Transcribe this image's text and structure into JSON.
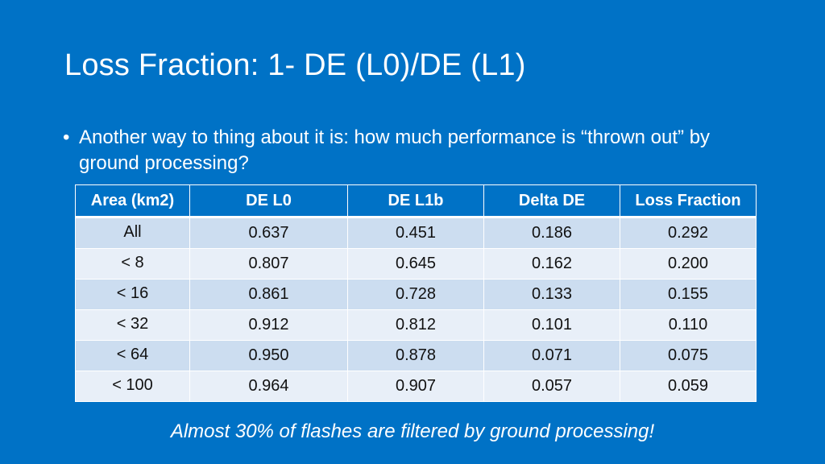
{
  "slide": {
    "title": "Loss Fraction: 1- DE (L0)/DE (L1)",
    "bullets": [
      {
        "marker": "•",
        "text": "Another way to thing about it is: how much performance is “thrown out” by ground processing?"
      }
    ],
    "table": {
      "headers": [
        "Area (km2)",
        "DE L0",
        "DE L1b",
        "Delta DE",
        "Loss Fraction"
      ],
      "rows": [
        [
          "All",
          "0.637",
          "0.451",
          "0.186",
          "0.292"
        ],
        [
          "< 8",
          "0.807",
          "0.645",
          "0.162",
          "0.200"
        ],
        [
          "< 16",
          "0.861",
          "0.728",
          "0.133",
          "0.155"
        ],
        [
          "< 32",
          "0.912",
          "0.812",
          "0.101",
          "0.110"
        ],
        [
          "< 64",
          "0.950",
          "0.878",
          "0.071",
          "0.075"
        ],
        [
          "< 100",
          "0.964",
          "0.907",
          "0.057",
          "0.059"
        ]
      ]
    },
    "note": "Almost 30% of flashes are filtered by ground processing!",
    "colors": {
      "background": "#0072C6",
      "row_odd": "#CCDDF0",
      "row_even": "#E8EFF8",
      "text": "#FFFFFF"
    }
  }
}
